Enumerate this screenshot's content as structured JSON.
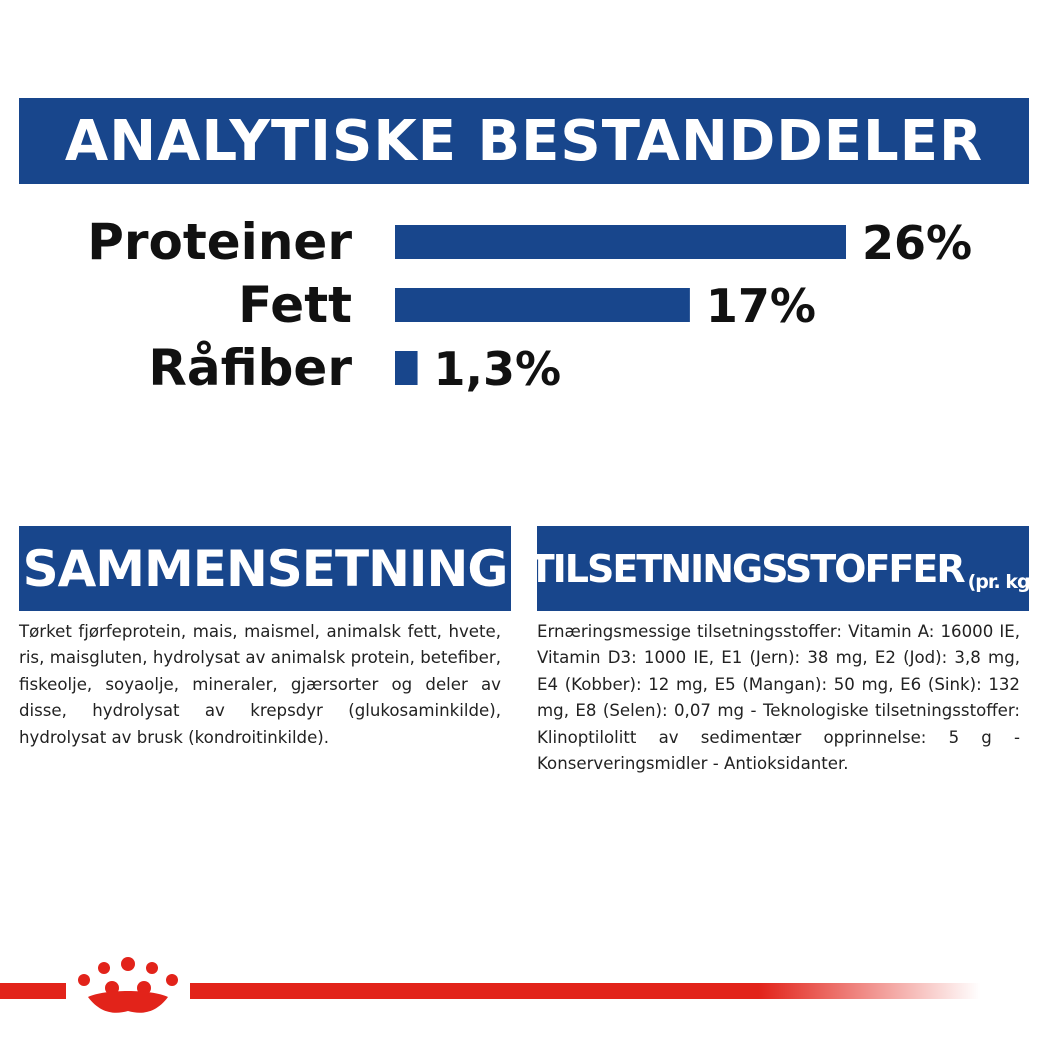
{
  "header": {
    "title": "ANALYTISKE BESTANDDELER"
  },
  "chart_data": {
    "type": "bar",
    "orientation": "horizontal",
    "categories": [
      "Proteiner",
      "Fett",
      "Råfiber"
    ],
    "values": [
      26,
      17,
      1.3
    ],
    "value_labels": [
      "26%",
      "17%",
      "1,3%"
    ],
    "bar_color": "#18468c"
  },
  "composition": {
    "title": "SAMMENSETNING",
    "text": "Tørket fjørfeprotein, mais, maismel, animalsk fett, hvete, ris, maisgluten, hydrolysat av animalsk protein, betefiber, fiskeolje, soyaolje, mineraler, gjærsorter og deler av disse, hydrolysat av krepsdyr (glukosaminkilde), hydrolysat av brusk (kondroitinkilde)."
  },
  "additives": {
    "title": "TILSETNINGSSTOFFER",
    "title_suffix": "(pr. kg)",
    "text": "Ernæringsmessige tilsetningsstoffer: Vitamin A: 16000 IE, Vitamin D3: 1000 IE, E1 (Jern): 38 mg, E2 (Jod): 3,8 mg, E4 (Kobber): 12 mg, E5 (Mangan): 50 mg, E6 (Sink): 132 mg, E8 (Selen): 0,07 mg - Teknologiske tilsetningsstoffer: Klinoptilolitt av sedimentær opprinnelse: 5 g - Konserveringsmidler - Antioksidanter."
  },
  "colors": {
    "brand_blue": "#18468c",
    "brand_red": "#e2231a"
  },
  "footer": {
    "logo": "royal-canin-crown-logo"
  }
}
